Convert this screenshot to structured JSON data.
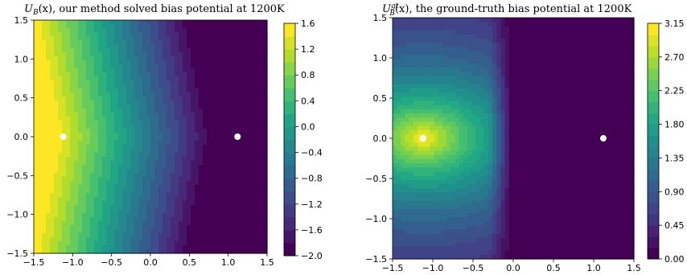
{
  "chart_data": [
    {
      "type": "heatmap",
      "subtype": "filled-contour",
      "title": "U_B(x), our method solved bias potential at 1200K",
      "title_parts": {
        "symbol": "U",
        "subscript": "B",
        "rest": "(x), our method solved bias potential at 1200K"
      },
      "xlim": [
        -1.5,
        1.5
      ],
      "ylim": [
        -1.5,
        1.5
      ],
      "xticks": [
        "−1.5",
        "−1.0",
        "−0.5",
        "0.0",
        "0.5",
        "1.0",
        "1.5"
      ],
      "yticks": [
        "−1.5",
        "−1.0",
        "−0.5",
        "0.0",
        "0.5",
        "1.0",
        "1.5"
      ],
      "colormap": "viridis",
      "colorbar": {
        "min": -2.0,
        "max": 1.6,
        "ticks": [
          "1.6",
          "1.2",
          "0.8",
          "0.4",
          "0.0",
          "−0.4",
          "−0.8",
          "−1.2",
          "−1.6",
          "−2.0"
        ]
      },
      "markers": [
        {
          "x": -1.12,
          "y": 0.0,
          "color": "#ffffff"
        },
        {
          "x": 1.12,
          "y": 0.0,
          "color": "#ffffff"
        }
      ]
    },
    {
      "type": "heatmap",
      "subtype": "filled-contour",
      "title": "U_B^gt(x), the ground-truth bias potential at 1200K",
      "title_parts": {
        "symbol": "U",
        "subscript": "B",
        "superscript": "gt",
        "rest": "(x), the ground-truth bias potential at 1200K"
      },
      "xlim": [
        -1.5,
        1.5
      ],
      "ylim": [
        -1.5,
        1.5
      ],
      "xticks": [
        "−1.5",
        "−1.0",
        "−0.5",
        "0.0",
        "0.5",
        "1.0",
        "1.5"
      ],
      "yticks": [
        "−1.5",
        "−1.0",
        "−0.5",
        "0.0",
        "0.5",
        "1.0",
        "1.5"
      ],
      "colormap": "viridis",
      "colorbar": {
        "min": 0.0,
        "max": 3.15,
        "ticks": [
          "3.15",
          "2.70",
          "2.25",
          "1.80",
          "1.35",
          "0.90",
          "0.45",
          "0.00"
        ]
      },
      "markers": [
        {
          "x": -1.12,
          "y": 0.0,
          "color": "#ffffff"
        },
        {
          "x": 1.12,
          "y": 0.0,
          "color": "#ffffff"
        }
      ]
    }
  ]
}
